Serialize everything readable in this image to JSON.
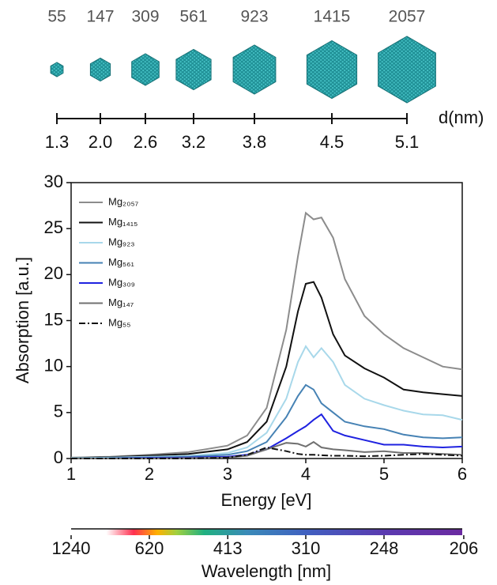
{
  "clusters": {
    "items": [
      {
        "atoms": 55,
        "d": "1.3"
      },
      {
        "atoms": 147,
        "d": "2.0"
      },
      {
        "atoms": 309,
        "d": "2.6"
      },
      {
        "atoms": 561,
        "d": "3.2"
      },
      {
        "atoms": 923,
        "d": "3.8"
      },
      {
        "atoms": 1415,
        "d": "4.5"
      },
      {
        "atoms": 2057,
        "d": "5.1"
      }
    ],
    "axis_label": "d(nm)"
  },
  "chart_data": {
    "type": "line",
    "xlabel": "Energy [eV]",
    "ylabel": "Absorption [a.u.]",
    "xlim": [
      1,
      6
    ],
    "ylim": [
      0,
      30
    ],
    "xticks": [
      1,
      2,
      3,
      4,
      5,
      6
    ],
    "yticks": [
      0,
      5,
      10,
      15,
      20,
      25,
      30
    ],
    "legend": "upper left",
    "x": [
      1.0,
      1.5,
      2.0,
      2.5,
      3.0,
      3.25,
      3.5,
      3.75,
      3.9,
      4.0,
      4.1,
      4.2,
      4.35,
      4.5,
      4.75,
      5.0,
      5.25,
      5.5,
      5.75,
      6.0
    ],
    "series": [
      {
        "name": "Mg₂₀₅₇",
        "color": "#8c8c8c",
        "linestyle": "solid",
        "values": [
          0.1,
          0.2,
          0.4,
          0.7,
          1.4,
          2.5,
          5.5,
          14,
          22,
          26.7,
          26,
          26.2,
          24,
          19.5,
          15.5,
          13.5,
          12,
          11,
          10,
          9.7
        ]
      },
      {
        "name": "Mg₁₄₁₅",
        "color": "#111111",
        "linestyle": "solid",
        "values": [
          0.05,
          0.15,
          0.3,
          0.5,
          1,
          1.8,
          4,
          10,
          16,
          19,
          19.2,
          17.5,
          13.5,
          11.2,
          9.8,
          8.8,
          7.5,
          7.2,
          7,
          6.8
        ]
      },
      {
        "name": "Mg₉₂₃",
        "color": "#a8d8ea",
        "linestyle": "solid",
        "values": [
          0.05,
          0.1,
          0.2,
          0.3,
          0.6,
          1.2,
          2.8,
          6.5,
          10.5,
          12.2,
          11,
          12,
          10.5,
          8,
          6.5,
          5.8,
          5.2,
          4.8,
          4.7,
          4.2
        ]
      },
      {
        "name": "Mg₅₆₁",
        "color": "#4682b4",
        "linestyle": "solid",
        "values": [
          0,
          0.05,
          0.1,
          0.2,
          0.4,
          0.8,
          1.8,
          4.5,
          6.8,
          8,
          7.5,
          6,
          5,
          4,
          3.5,
          3.2,
          2.6,
          2.3,
          2.2,
          2.3
        ]
      },
      {
        "name": "Mg₃₀₉",
        "color": "#1f22e0",
        "linestyle": "solid",
        "values": [
          0,
          0,
          0.05,
          0.1,
          0.2,
          0.4,
          1,
          2.2,
          3,
          3.5,
          4.2,
          4.8,
          3,
          2.5,
          2,
          1.5,
          1.5,
          1.3,
          1.2,
          1.3
        ]
      },
      {
        "name": "Mg₁₄₇",
        "color": "#707070",
        "linestyle": "solid",
        "values": [
          0,
          0,
          0,
          0.05,
          0.1,
          0.3,
          1,
          1.7,
          1.6,
          1.3,
          1.8,
          1.2,
          1.0,
          0.9,
          0.7,
          0.8,
          0.6,
          0.6,
          0.5,
          0.4
        ]
      },
      {
        "name": "Mg₅₅",
        "color": "#111111",
        "linestyle": "dashdot",
        "values": [
          0,
          0,
          0,
          0,
          0.1,
          0.4,
          1.2,
          0.8,
          0.5,
          0.4,
          0.4,
          0.35,
          0.3,
          0.3,
          0.25,
          0.3,
          0.4,
          0.5,
          0.4,
          0.3
        ]
      }
    ],
    "wavelength_axis": {
      "label": "Wavelength [nm]",
      "scale": "reciprocal",
      "lim": [
        1240,
        206
      ],
      "ticks": [
        1240,
        620,
        413,
        310,
        248,
        206
      ]
    }
  }
}
